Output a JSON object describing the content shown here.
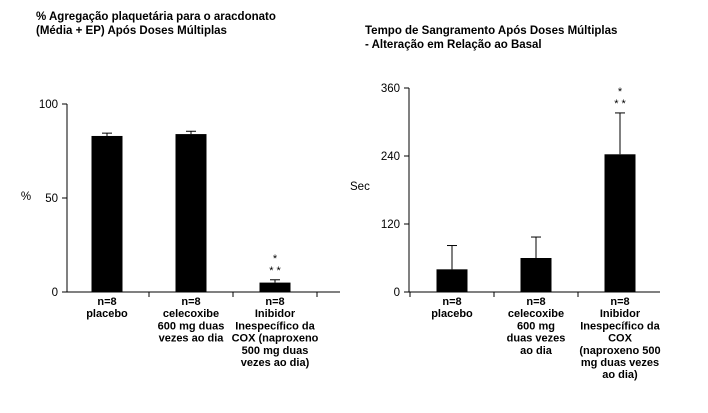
{
  "chart_data": [
    {
      "type": "bar",
      "title": [
        "% Agregação plaquetária para o aracdonato",
        "(Média + EP) Após Doses Múltiplas"
      ],
      "ylabel": "%",
      "ylim": [
        0,
        100
      ],
      "yticks": [
        0,
        50,
        100
      ],
      "grid": false,
      "categories": [
        [
          "n=8",
          "placebo"
        ],
        [
          "n=8",
          "celecoxibe",
          "600 mg duas",
          "vezes ao dia"
        ],
        [
          "n=8",
          "Inibidor",
          "Inespecífico da",
          "COX (naproxeno",
          "500 mg duas",
          "vezes ao dia)"
        ]
      ],
      "values": [
        83,
        84,
        5
      ],
      "errors": [
        1.5,
        1.5,
        1.5
      ],
      "annotations": [
        null,
        null,
        [
          "*",
          "* *"
        ]
      ],
      "color": "#000000"
    },
    {
      "type": "bar",
      "title": [
        "Tempo de Sangramento Após Doses Múltiplas",
        "- Alteração em Relação ao Basal"
      ],
      "ylabel": "Sec",
      "ylim": [
        0,
        360
      ],
      "yticks": [
        0,
        120,
        240,
        360
      ],
      "grid": false,
      "categories": [
        [
          "n=8",
          "placebo"
        ],
        [
          "n=8",
          "celecoxibe",
          "600 mg",
          "duas vezes",
          "ao dia"
        ],
        [
          "n=8",
          "Inibidor",
          "Inespecífico da",
          "COX",
          "(naproxeno 500",
          "mg duas vezes",
          "ao dia)"
        ]
      ],
      "values": [
        40,
        60,
        243
      ],
      "errors": [
        42,
        37,
        73
      ],
      "annotations": [
        null,
        null,
        [
          "*",
          "* *"
        ]
      ],
      "color": "#000000"
    }
  ]
}
